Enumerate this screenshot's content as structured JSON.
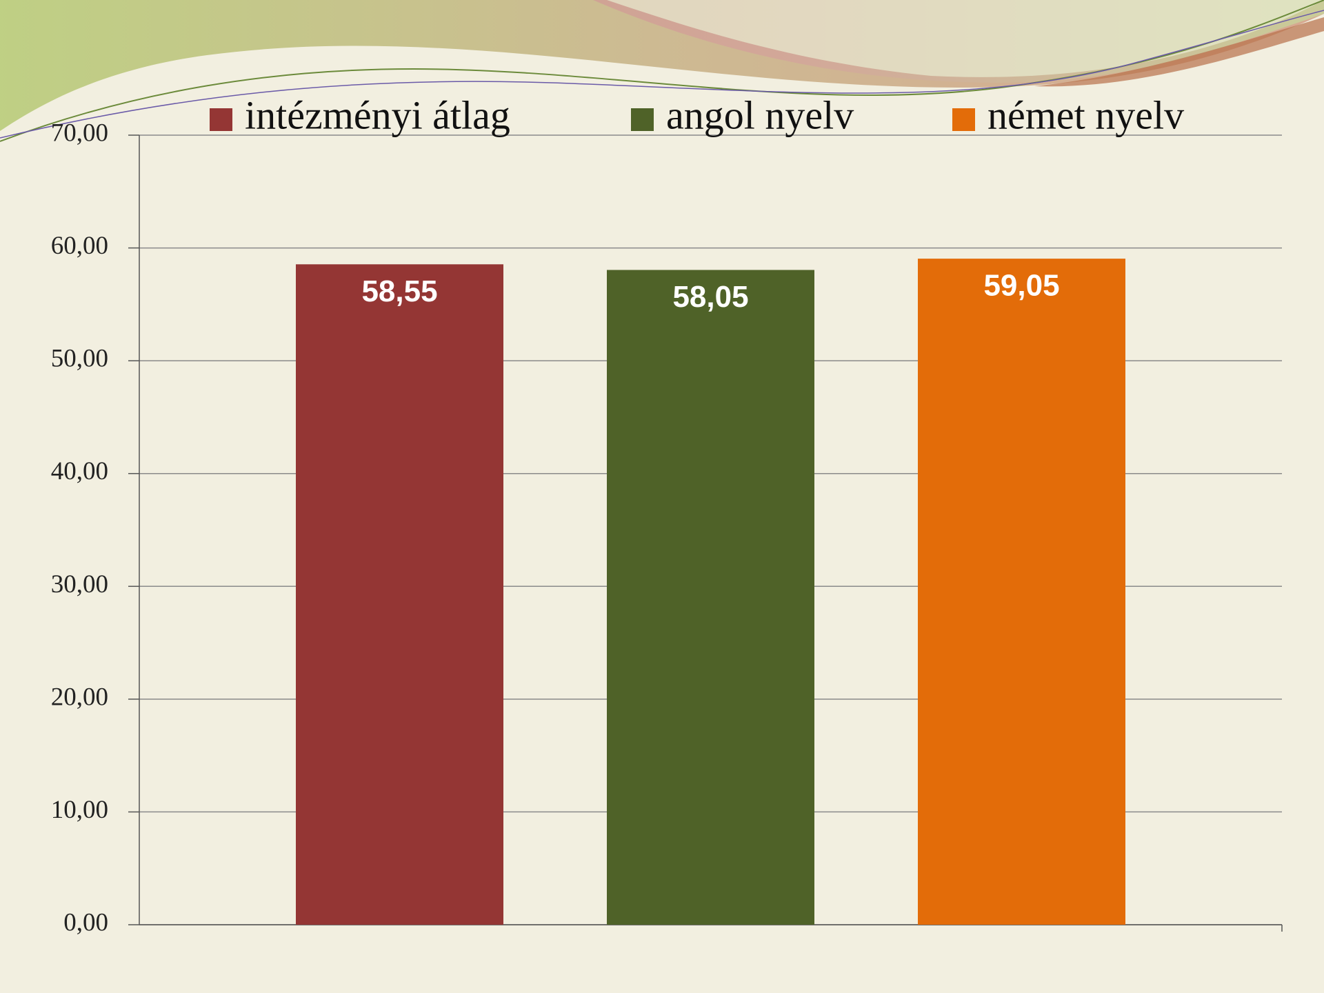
{
  "chart_data": {
    "type": "bar",
    "categories": [
      null
    ],
    "series": [
      {
        "name": "intézményi átlag",
        "color": "#943634",
        "values": [
          58.55
        ],
        "value_labels": [
          "58,55"
        ]
      },
      {
        "name": "angol nyelv",
        "color": "#4f6228",
        "values": [
          58.05
        ],
        "value_labels": [
          "58,05"
        ]
      },
      {
        "name": "német nyelv",
        "color": "#e36c09",
        "values": [
          59.05
        ],
        "value_labels": [
          "59,05"
        ]
      }
    ],
    "ylim": [
      0,
      70
    ],
    "yticks": [
      {
        "value": 0,
        "label": "0,00"
      },
      {
        "value": 10,
        "label": "10,00"
      },
      {
        "value": 20,
        "label": "20,00"
      },
      {
        "value": 30,
        "label": "30,00"
      },
      {
        "value": 40,
        "label": "40,00"
      },
      {
        "value": 50,
        "label": "50,00"
      },
      {
        "value": 60,
        "label": "60,00"
      },
      {
        "value": 70,
        "label": "70,00"
      }
    ],
    "grid": true,
    "legend": "top"
  }
}
